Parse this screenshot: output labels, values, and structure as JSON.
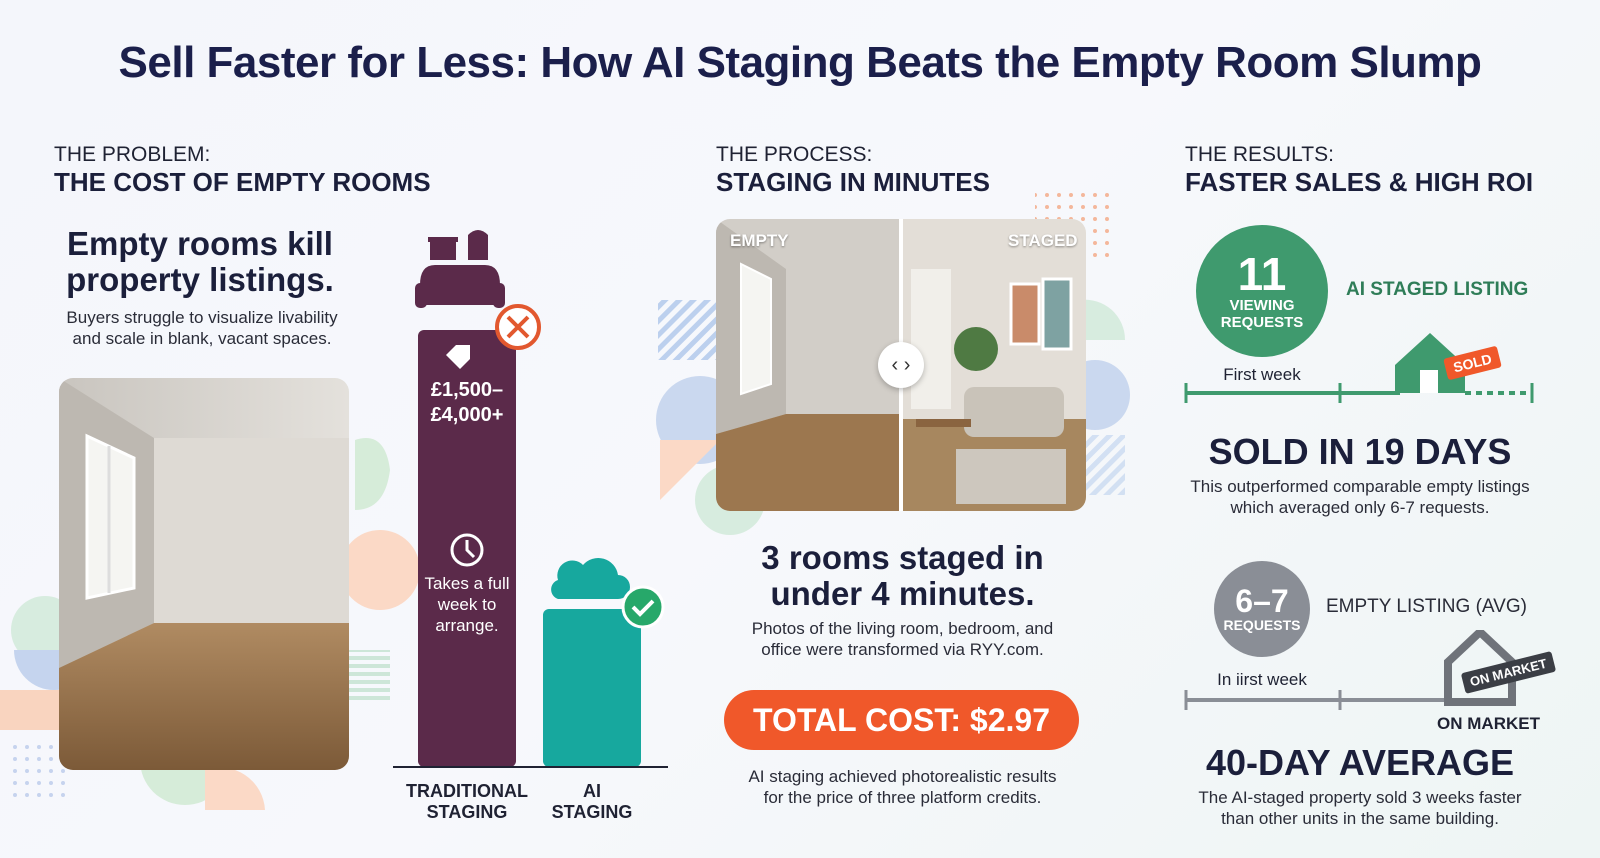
{
  "title": "Sell Faster for Less: How AI Staging Beats the Empty Room Slump",
  "problem": {
    "label": "THE PROBLEM:",
    "heading": "THE COST OF EMPTY ROOMS",
    "headline": "Empty rooms kill property listings.",
    "text": "Buyers struggle to visualize livability and scale in blank, vacant spaces.",
    "traditional": {
      "price": "£1,500–£4,000+",
      "note": "Takes a full week to arrange.",
      "label": "TRADITIONAL STAGING"
    },
    "ai": {
      "label": "AI STAGING"
    }
  },
  "process": {
    "label": "THE PROCESS:",
    "heading": "STAGING IN MINUTES",
    "before": "EMPTY",
    "after": "STAGED",
    "headline": "3 rooms staged in under 4 minutes.",
    "text": "Photos of the living room, bedroom, and office were transformed via RYY.com.",
    "cost": "TOTAL COST: $2.97",
    "footnote": "AI staging achieved photorealistic results for the price of three platform credits."
  },
  "results": {
    "label": "THE RESULTS:",
    "heading": "FASTER SALES & HIGH ROI",
    "staged": {
      "number": "11",
      "badge": "VIEWING REQUESTS",
      "name": "AI STAGED LISTING",
      "period": "First week",
      "tag": "SOLD",
      "headline": "SOLD IN 19 DAYS",
      "text": "This outperformed comparable empty listings which averaged only 6-7 requests."
    },
    "empty": {
      "number": "6–7",
      "badge": "REQUESTS",
      "name": "EMPTY LISTING (AVG)",
      "period": "In iirst week",
      "tag": "ON MARKET",
      "status": "ON MARKET",
      "headline": "40-DAY AVERAGE",
      "text": "The AI-staged property sold 3 weeks faster than other units in the same building."
    }
  }
}
